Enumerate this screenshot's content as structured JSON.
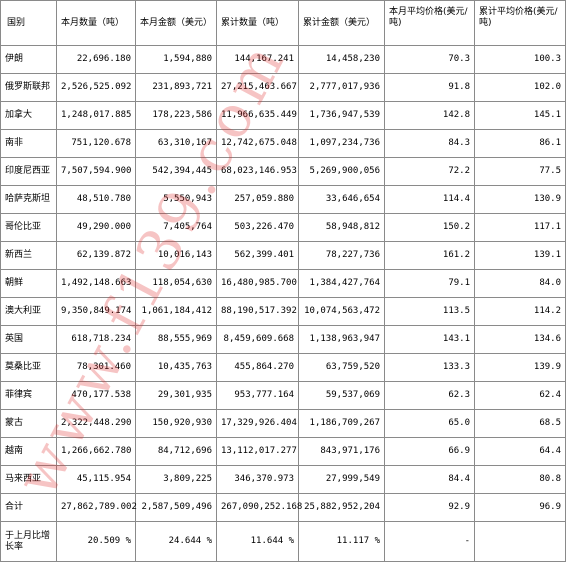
{
  "headers": [
    "国别",
    "本月数量（吨）",
    "本月金额（美元）",
    "累计数量（吨）",
    "累计金额（美元）",
    "本月平均价格(美元/吨)",
    "累计平均价格(美元/吨)"
  ],
  "rows": [
    {
      "country": "伊朗",
      "month_qty": "22,696.180",
      "month_amt": "1,594,880",
      "cum_qty": "144,167.241",
      "cum_amt": "14,458,230",
      "month_avg": "70.3",
      "cum_avg": "100.3"
    },
    {
      "country": "俄罗斯联邦",
      "month_qty": "2,526,525.092",
      "month_amt": "231,893,721",
      "cum_qty": "27,215,463.667",
      "cum_amt": "2,777,017,936",
      "month_avg": "91.8",
      "cum_avg": "102.0"
    },
    {
      "country": "加拿大",
      "month_qty": "1,248,017.885",
      "month_amt": "178,223,586",
      "cum_qty": "11,966,635.449",
      "cum_amt": "1,736,947,539",
      "month_avg": "142.8",
      "cum_avg": "145.1"
    },
    {
      "country": "南非",
      "month_qty": "751,120.678",
      "month_amt": "63,310,167",
      "cum_qty": "12,742,675.048",
      "cum_amt": "1,097,234,736",
      "month_avg": "84.3",
      "cum_avg": "86.1"
    },
    {
      "country": "印度尼西亚",
      "month_qty": "7,507,594.900",
      "month_amt": "542,394,445",
      "cum_qty": "68,023,146.953",
      "cum_amt": "5,269,900,056",
      "month_avg": "72.2",
      "cum_avg": "77.5"
    },
    {
      "country": "哈萨克斯坦",
      "month_qty": "48,510.780",
      "month_amt": "5,550,943",
      "cum_qty": "257,059.880",
      "cum_amt": "33,646,654",
      "month_avg": "114.4",
      "cum_avg": "130.9"
    },
    {
      "country": "哥伦比亚",
      "month_qty": "49,290.000",
      "month_amt": "7,405,764",
      "cum_qty": "503,226.470",
      "cum_amt": "58,948,812",
      "month_avg": "150.2",
      "cum_avg": "117.1"
    },
    {
      "country": "新西兰",
      "month_qty": "62,139.872",
      "month_amt": "10,016,143",
      "cum_qty": "562,399.401",
      "cum_amt": "78,227,736",
      "month_avg": "161.2",
      "cum_avg": "139.1"
    },
    {
      "country": "朝鲜",
      "month_qty": "1,492,148.663",
      "month_amt": "118,054,630",
      "cum_qty": "16,480,985.700",
      "cum_amt": "1,384,427,764",
      "month_avg": "79.1",
      "cum_avg": "84.0"
    },
    {
      "country": "澳大利亚",
      "month_qty": "9,350,849.174",
      "month_amt": "1,061,184,412",
      "cum_qty": "88,190,517.392",
      "cum_amt": "10,074,563,472",
      "month_avg": "113.5",
      "cum_avg": "114.2"
    },
    {
      "country": "英国",
      "month_qty": "618,718.234",
      "month_amt": "88,555,969",
      "cum_qty": "8,459,609.668",
      "cum_amt": "1,138,963,947",
      "month_avg": "143.1",
      "cum_avg": "134.6"
    },
    {
      "country": "莫桑比亚",
      "month_qty": "78,301.460",
      "month_amt": "10,435,763",
      "cum_qty": "455,864.270",
      "cum_amt": "63,759,520",
      "month_avg": "133.3",
      "cum_avg": "139.9"
    },
    {
      "country": "菲律宾",
      "month_qty": "470,177.538",
      "month_amt": "29,301,935",
      "cum_qty": "953,777.164",
      "cum_amt": "59,537,069",
      "month_avg": "62.3",
      "cum_avg": "62.4"
    },
    {
      "country": "蒙古",
      "month_qty": "2,322,448.290",
      "month_amt": "150,920,930",
      "cum_qty": "17,329,926.404",
      "cum_amt": "1,186,709,267",
      "month_avg": "65.0",
      "cum_avg": "68.5"
    },
    {
      "country": "越南",
      "month_qty": "1,266,662.780",
      "month_amt": "84,712,696",
      "cum_qty": "13,112,017.277",
      "cum_amt": "843,971,176",
      "month_avg": "66.9",
      "cum_avg": "64.4"
    },
    {
      "country": "马来西亚",
      "month_qty": "45,115.954",
      "month_amt": "3,809,225",
      "cum_qty": "346,370.973",
      "cum_amt": "27,999,549",
      "month_avg": "84.4",
      "cum_avg": "80.8"
    },
    {
      "country": "合计",
      "month_qty": "27,862,789.002",
      "month_amt": "2,587,509,496",
      "cum_qty": "267,090,252.168",
      "cum_amt": "25,882,952,204",
      "month_avg": "92.9",
      "cum_avg": "96.9"
    }
  ],
  "last_row": {
    "label": "于上月比增长率",
    "month_qty": "20.509 %",
    "month_amt": "24.644 %",
    "cum_qty": "11.644 %",
    "cum_amt": "11.117 %",
    "month_avg": "-",
    "cum_avg": ""
  },
  "watermark": {
    "text": "www.f139.com",
    "color": "#e03030"
  }
}
